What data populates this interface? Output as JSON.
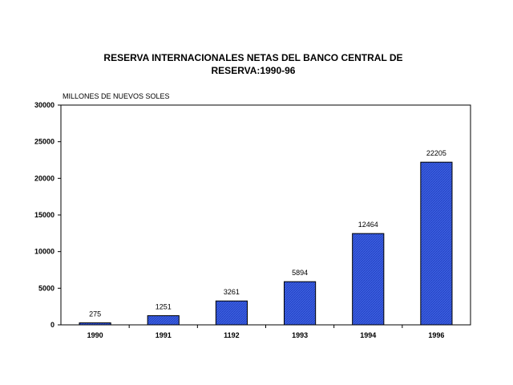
{
  "chart_data": {
    "type": "bar",
    "title_lines": [
      "RESERVA INTERNACIONALES NETAS DEL BANCO CENTRAL DE",
      "RESERVA:1990-96"
    ],
    "ylabel": "MILLONES DE NUEVOS SOLES",
    "xlabel": "",
    "categories": [
      "1990",
      "1991",
      "1192",
      "1993",
      "1994",
      "1996"
    ],
    "values": [
      275,
      1251,
      3261,
      5894,
      12464,
      22205
    ],
    "data_labels": [
      "275",
      "1251",
      "3261",
      "5894",
      "12464",
      "22205"
    ],
    "ylim": [
      0,
      30000
    ],
    "yticks": [
      0,
      5000,
      10000,
      15000,
      20000,
      25000,
      30000
    ],
    "grid": false,
    "bar_color": "#3d5fe0"
  }
}
